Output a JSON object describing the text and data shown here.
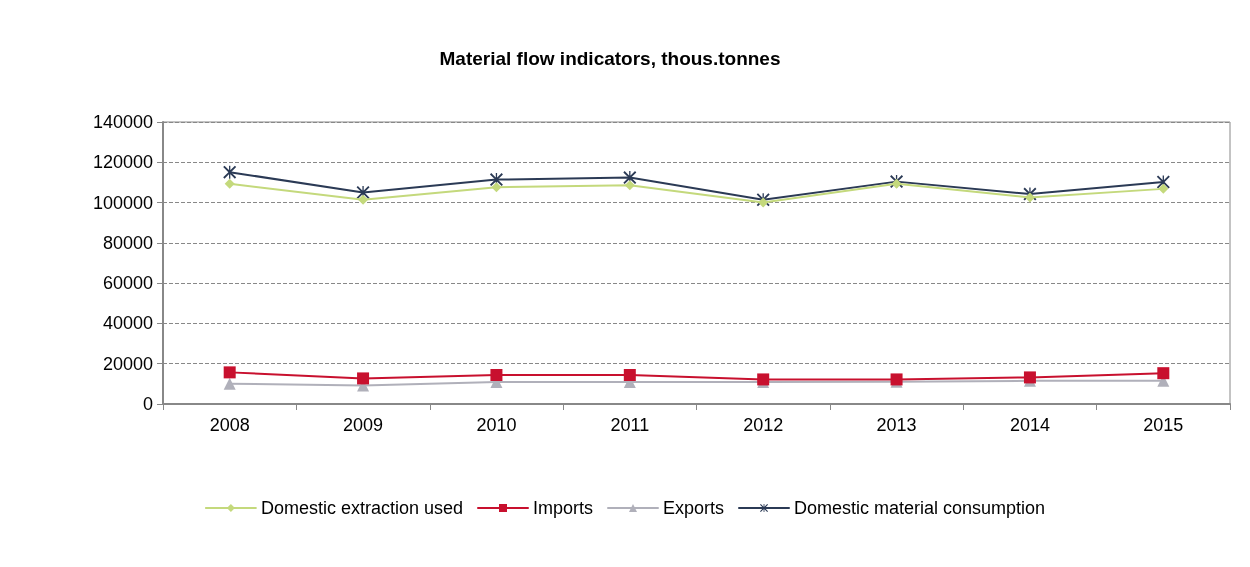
{
  "chart_data": {
    "type": "line",
    "title": "Material flow indicators, thous.tonnes",
    "categories": [
      "2008",
      "2009",
      "2010",
      "2011",
      "2012",
      "2013",
      "2014",
      "2015"
    ],
    "series": [
      {
        "name": "Domestic extraction used",
        "color": "#c4d97c",
        "marker": "diamond",
        "values": [
          109300,
          101400,
          107600,
          108600,
          100000,
          109300,
          102500,
          106800
        ]
      },
      {
        "name": "Imports",
        "color": "#c8102e",
        "marker": "square",
        "values": [
          15700,
          12700,
          14400,
          14400,
          12200,
          12200,
          13200,
          15300
        ]
      },
      {
        "name": "Exports",
        "color": "#b0b0ba",
        "marker": "triangle",
        "values": [
          10100,
          9200,
          10900,
          10900,
          10900,
          11000,
          11500,
          11500
        ]
      },
      {
        "name": "Domestic material consumption",
        "color": "#2b3a55",
        "marker": "cross",
        "values": [
          115100,
          105000,
          111400,
          112400,
          101400,
          110400,
          104200,
          110200
        ]
      }
    ],
    "ylim": [
      0,
      140000
    ],
    "yticks": [
      0,
      20000,
      40000,
      60000,
      80000,
      100000,
      120000,
      140000
    ],
    "grid": "y",
    "legend": "bottom",
    "line_style": "solid"
  }
}
